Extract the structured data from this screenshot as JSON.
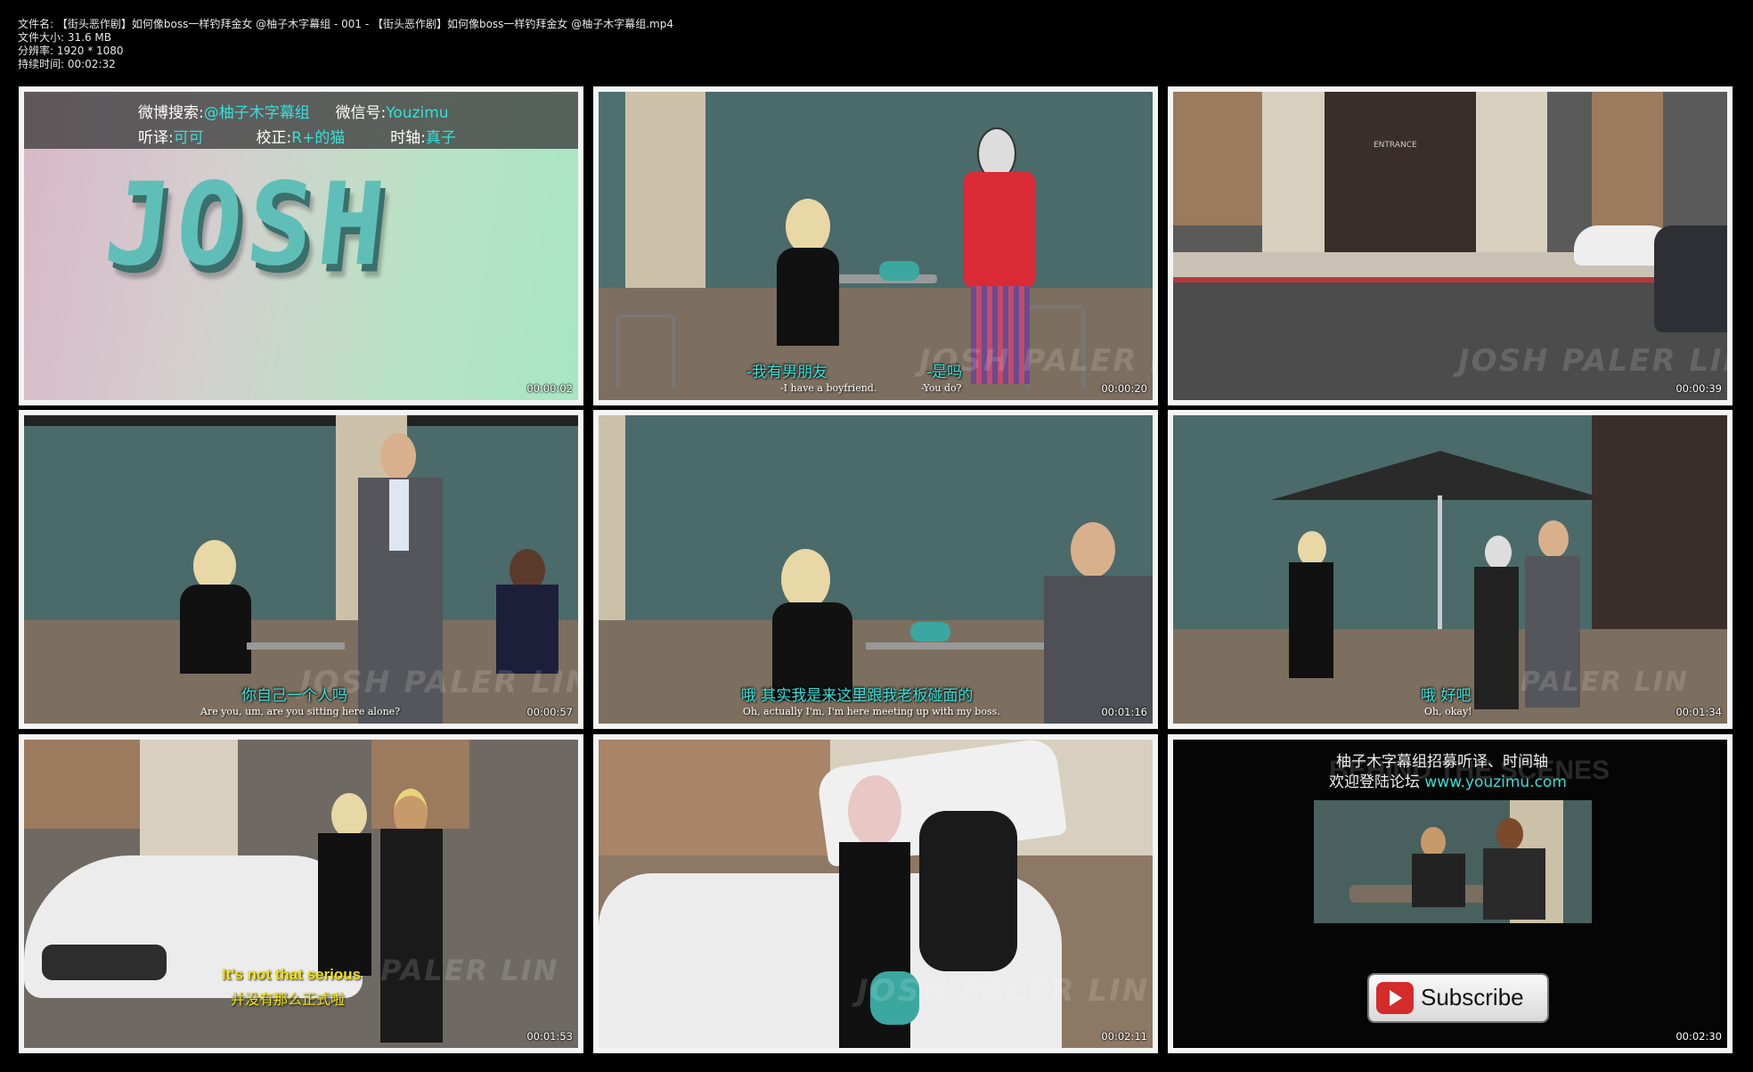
{
  "meta": {
    "filename": "文件名: 【街头恶作剧】如何像boss一样钓拜金女 @柚子木字幕组 - 001 - 【街头恶作剧】如何像boss一样钓拜金女 @柚子木字幕组.mp4",
    "filesize": "文件大小: 31.6 MB",
    "resolution": "分辨率: 1920 * 1080",
    "duration": "持续时间: 00:02:32"
  },
  "thumbs": [
    {
      "timestamp": "00:00:02",
      "credits": {
        "line1_a_label": "微博搜索:",
        "line1_a_value": "@柚子木字幕组",
        "line1_b_label": "微信号:",
        "line1_b_value": "Youzimu",
        "line2_a_label": "听译:",
        "line2_a_value": "可可",
        "line2_b_label": "校正:",
        "line2_b_value": "R+的猫",
        "line2_c_label": "时轴:",
        "line2_c_value": "真子"
      },
      "logo": "JOSH"
    },
    {
      "timestamp": "00:00:20",
      "sub_cn_left": "-我有男朋友",
      "sub_cn_right": "-是吗",
      "sub_en_left": "-I have a boyfriend.",
      "sub_en_right": "-You do?",
      "watermark": "JOSH PALER LIN"
    },
    {
      "timestamp": "00:00:39",
      "watermark": "JOSH PALER LIN",
      "sign": "ENTRANCE"
    },
    {
      "timestamp": "00:00:57",
      "sub_cn": "你自己一个人吗",
      "sub_en": "Are you, um, are you sitting here alone?",
      "watermark": "JOSH PALER LIN"
    },
    {
      "timestamp": "00:01:16",
      "sub_cn": "哦  其实我是来这里跟我老板碰面的",
      "sub_en": "Oh, actually I'm, I'm here meeting up with my boss."
    },
    {
      "timestamp": "00:01:34",
      "sub_cn": "哦  好吧",
      "sub_en": "Oh, okay!",
      "watermark": "PALER LIN"
    },
    {
      "timestamp": "00:01:53",
      "sub_en": "It's not that serious",
      "sub_cn": "并没有那么正式啦",
      "watermark": "PALER LIN"
    },
    {
      "timestamp": "00:02:11",
      "watermark": "JOSH PALER LIN"
    },
    {
      "timestamp": "00:02:30",
      "recruit_line1": "柚子木字幕组招募听译、时间轴",
      "recruit_line2_prefix": "欢迎登陆论坛 ",
      "recruit_url": "www.youzimu.com",
      "behind": "BEHIND THE SCENES",
      "subscribe": "Subscribe"
    }
  ],
  "colors": {
    "background": "#000000",
    "frame_border": "#f4f4f4",
    "subtitle_cyan": "#35e0d8",
    "subtitle_yellow": "#f2e400",
    "logo_teal": "#5fbfb8"
  }
}
